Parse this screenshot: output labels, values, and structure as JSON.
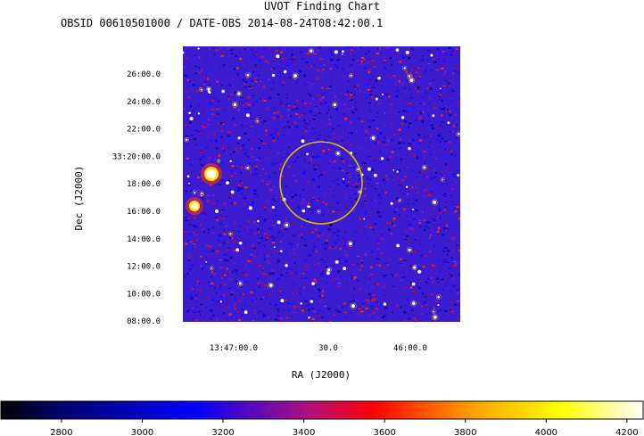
{
  "chart_data": {
    "type": "heatmap",
    "title": "UVOT Finding Chart",
    "subtitle": "OBSID 00610501000 / DATE-OBS 2014-08-24T08:42:00.1",
    "xlabel": "RA (J2000)",
    "ylabel": "Dec (J2000)",
    "x_ticks": [
      "13:47:00.0",
      "30.0",
      "46:00.0"
    ],
    "y_ticks": [
      "26:00.0",
      "24:00.0",
      "22:00.0",
      "33:20:00.0",
      "18:00.0",
      "16:00.0",
      "14:00.0",
      "12:00.0",
      "10:00.0",
      "08:00.0"
    ],
    "colorbar": {
      "ticks": [
        "2800",
        "3000",
        "3200",
        "3400",
        "3600",
        "3800",
        "4000",
        "4200"
      ],
      "range": [
        2650,
        4240
      ],
      "colors": [
        "#000000",
        "#0000ff",
        "#ff0000",
        "#ffff00",
        "#ffffff"
      ]
    },
    "annotation": {
      "shape": "circle",
      "color": "#d4c400"
    }
  }
}
